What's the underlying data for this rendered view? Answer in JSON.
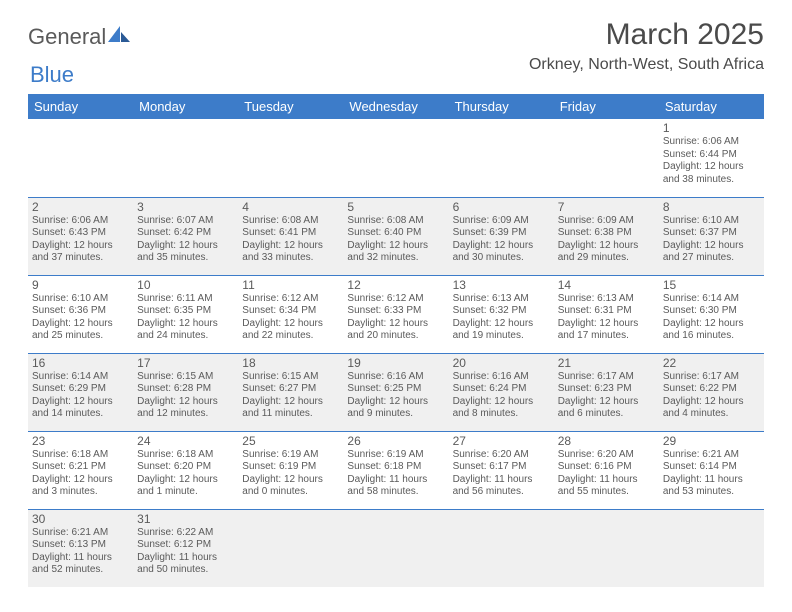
{
  "logo": {
    "text1": "General",
    "text2": "Blue"
  },
  "title": "March 2025",
  "location": "Orkney, North-West, South Africa",
  "colors": {
    "header_bg": "#3d7cc9",
    "header_text": "#ffffff",
    "shaded_row": "#f0f0f0",
    "text": "#5a5a5a",
    "row_divider": "#3d7cc9"
  },
  "day_headers": [
    "Sunday",
    "Monday",
    "Tuesday",
    "Wednesday",
    "Thursday",
    "Friday",
    "Saturday"
  ],
  "weeks": [
    {
      "shaded": false,
      "days": [
        null,
        null,
        null,
        null,
        null,
        null,
        {
          "n": "1",
          "sr": "Sunrise: 6:06 AM",
          "ss": "Sunset: 6:44 PM",
          "d1": "Daylight: 12 hours",
          "d2": "and 38 minutes."
        }
      ]
    },
    {
      "shaded": true,
      "days": [
        {
          "n": "2",
          "sr": "Sunrise: 6:06 AM",
          "ss": "Sunset: 6:43 PM",
          "d1": "Daylight: 12 hours",
          "d2": "and 37 minutes."
        },
        {
          "n": "3",
          "sr": "Sunrise: 6:07 AM",
          "ss": "Sunset: 6:42 PM",
          "d1": "Daylight: 12 hours",
          "d2": "and 35 minutes."
        },
        {
          "n": "4",
          "sr": "Sunrise: 6:08 AM",
          "ss": "Sunset: 6:41 PM",
          "d1": "Daylight: 12 hours",
          "d2": "and 33 minutes."
        },
        {
          "n": "5",
          "sr": "Sunrise: 6:08 AM",
          "ss": "Sunset: 6:40 PM",
          "d1": "Daylight: 12 hours",
          "d2": "and 32 minutes."
        },
        {
          "n": "6",
          "sr": "Sunrise: 6:09 AM",
          "ss": "Sunset: 6:39 PM",
          "d1": "Daylight: 12 hours",
          "d2": "and 30 minutes."
        },
        {
          "n": "7",
          "sr": "Sunrise: 6:09 AM",
          "ss": "Sunset: 6:38 PM",
          "d1": "Daylight: 12 hours",
          "d2": "and 29 minutes."
        },
        {
          "n": "8",
          "sr": "Sunrise: 6:10 AM",
          "ss": "Sunset: 6:37 PM",
          "d1": "Daylight: 12 hours",
          "d2": "and 27 minutes."
        }
      ]
    },
    {
      "shaded": false,
      "days": [
        {
          "n": "9",
          "sr": "Sunrise: 6:10 AM",
          "ss": "Sunset: 6:36 PM",
          "d1": "Daylight: 12 hours",
          "d2": "and 25 minutes."
        },
        {
          "n": "10",
          "sr": "Sunrise: 6:11 AM",
          "ss": "Sunset: 6:35 PM",
          "d1": "Daylight: 12 hours",
          "d2": "and 24 minutes."
        },
        {
          "n": "11",
          "sr": "Sunrise: 6:12 AM",
          "ss": "Sunset: 6:34 PM",
          "d1": "Daylight: 12 hours",
          "d2": "and 22 minutes."
        },
        {
          "n": "12",
          "sr": "Sunrise: 6:12 AM",
          "ss": "Sunset: 6:33 PM",
          "d1": "Daylight: 12 hours",
          "d2": "and 20 minutes."
        },
        {
          "n": "13",
          "sr": "Sunrise: 6:13 AM",
          "ss": "Sunset: 6:32 PM",
          "d1": "Daylight: 12 hours",
          "d2": "and 19 minutes."
        },
        {
          "n": "14",
          "sr": "Sunrise: 6:13 AM",
          "ss": "Sunset: 6:31 PM",
          "d1": "Daylight: 12 hours",
          "d2": "and 17 minutes."
        },
        {
          "n": "15",
          "sr": "Sunrise: 6:14 AM",
          "ss": "Sunset: 6:30 PM",
          "d1": "Daylight: 12 hours",
          "d2": "and 16 minutes."
        }
      ]
    },
    {
      "shaded": true,
      "days": [
        {
          "n": "16",
          "sr": "Sunrise: 6:14 AM",
          "ss": "Sunset: 6:29 PM",
          "d1": "Daylight: 12 hours",
          "d2": "and 14 minutes."
        },
        {
          "n": "17",
          "sr": "Sunrise: 6:15 AM",
          "ss": "Sunset: 6:28 PM",
          "d1": "Daylight: 12 hours",
          "d2": "and 12 minutes."
        },
        {
          "n": "18",
          "sr": "Sunrise: 6:15 AM",
          "ss": "Sunset: 6:27 PM",
          "d1": "Daylight: 12 hours",
          "d2": "and 11 minutes."
        },
        {
          "n": "19",
          "sr": "Sunrise: 6:16 AM",
          "ss": "Sunset: 6:25 PM",
          "d1": "Daylight: 12 hours",
          "d2": "and 9 minutes."
        },
        {
          "n": "20",
          "sr": "Sunrise: 6:16 AM",
          "ss": "Sunset: 6:24 PM",
          "d1": "Daylight: 12 hours",
          "d2": "and 8 minutes."
        },
        {
          "n": "21",
          "sr": "Sunrise: 6:17 AM",
          "ss": "Sunset: 6:23 PM",
          "d1": "Daylight: 12 hours",
          "d2": "and 6 minutes."
        },
        {
          "n": "22",
          "sr": "Sunrise: 6:17 AM",
          "ss": "Sunset: 6:22 PM",
          "d1": "Daylight: 12 hours",
          "d2": "and 4 minutes."
        }
      ]
    },
    {
      "shaded": false,
      "days": [
        {
          "n": "23",
          "sr": "Sunrise: 6:18 AM",
          "ss": "Sunset: 6:21 PM",
          "d1": "Daylight: 12 hours",
          "d2": "and 3 minutes."
        },
        {
          "n": "24",
          "sr": "Sunrise: 6:18 AM",
          "ss": "Sunset: 6:20 PM",
          "d1": "Daylight: 12 hours",
          "d2": "and 1 minute."
        },
        {
          "n": "25",
          "sr": "Sunrise: 6:19 AM",
          "ss": "Sunset: 6:19 PM",
          "d1": "Daylight: 12 hours",
          "d2": "and 0 minutes."
        },
        {
          "n": "26",
          "sr": "Sunrise: 6:19 AM",
          "ss": "Sunset: 6:18 PM",
          "d1": "Daylight: 11 hours",
          "d2": "and 58 minutes."
        },
        {
          "n": "27",
          "sr": "Sunrise: 6:20 AM",
          "ss": "Sunset: 6:17 PM",
          "d1": "Daylight: 11 hours",
          "d2": "and 56 minutes."
        },
        {
          "n": "28",
          "sr": "Sunrise: 6:20 AM",
          "ss": "Sunset: 6:16 PM",
          "d1": "Daylight: 11 hours",
          "d2": "and 55 minutes."
        },
        {
          "n": "29",
          "sr": "Sunrise: 6:21 AM",
          "ss": "Sunset: 6:14 PM",
          "d1": "Daylight: 11 hours",
          "d2": "and 53 minutes."
        }
      ]
    },
    {
      "shaded": true,
      "lastrow": true,
      "days": [
        {
          "n": "30",
          "sr": "Sunrise: 6:21 AM",
          "ss": "Sunset: 6:13 PM",
          "d1": "Daylight: 11 hours",
          "d2": "and 52 minutes."
        },
        {
          "n": "31",
          "sr": "Sunrise: 6:22 AM",
          "ss": "Sunset: 6:12 PM",
          "d1": "Daylight: 11 hours",
          "d2": "and 50 minutes."
        },
        null,
        null,
        null,
        null,
        null
      ]
    }
  ]
}
